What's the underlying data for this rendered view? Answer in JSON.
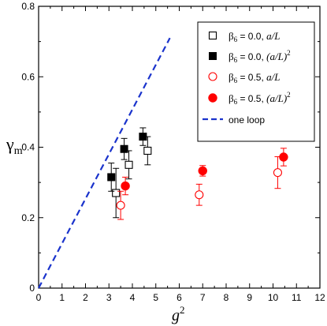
{
  "chart_data": {
    "type": "scatter",
    "xlabel": "g",
    "xlabel_sup": "2",
    "ylabel": "γ",
    "ylabel_sub": "m",
    "xlim": [
      0,
      12
    ],
    "ylim": [
      0,
      0.8
    ],
    "xticks": [
      0,
      1,
      2,
      3,
      4,
      5,
      6,
      7,
      8,
      9,
      10,
      11,
      12
    ],
    "yticks": [
      0,
      0.2,
      0.4,
      0.6,
      0.8
    ],
    "ytick_labels": [
      "0",
      "0.2",
      "0.4",
      "0.6",
      "0.8"
    ],
    "grid": false,
    "legend_position": "top-right",
    "series": [
      {
        "legend_parts": [
          "β",
          "6",
          " = 0.0, ",
          "a/L",
          "",
          ""
        ],
        "marker": "open-square",
        "color": "#000000",
        "points": [
          {
            "x": 3.3,
            "y": 0.27,
            "err": 0.07
          },
          {
            "x": 3.85,
            "y": 0.35,
            "err": 0.04
          },
          {
            "x": 4.65,
            "y": 0.39,
            "err": 0.04
          }
        ]
      },
      {
        "legend_parts": [
          "β",
          "6",
          " = 0.0, ",
          "(a/L)",
          "2",
          ""
        ],
        "marker": "filled-square",
        "color": "#000000",
        "points": [
          {
            "x": 3.1,
            "y": 0.315,
            "err": 0.04
          },
          {
            "x": 3.65,
            "y": 0.395,
            "err": 0.03
          },
          {
            "x": 4.45,
            "y": 0.43,
            "err": 0.025
          }
        ]
      },
      {
        "legend_parts": [
          "β",
          "6",
          " = 0.5, ",
          "a/L",
          "",
          ""
        ],
        "marker": "open-circle",
        "color": "#ff0000",
        "points": [
          {
            "x": 3.5,
            "y": 0.235,
            "err": 0.04
          },
          {
            "x": 6.85,
            "y": 0.265,
            "err": 0.03
          },
          {
            "x": 10.2,
            "y": 0.328,
            "err": 0.045
          }
        ]
      },
      {
        "legend_parts": [
          "β",
          "6",
          " = 0.5, ",
          "(a/L)",
          "2",
          ""
        ],
        "marker": "filled-circle",
        "color": "#ff0000",
        "points": [
          {
            "x": 3.7,
            "y": 0.29,
            "err": 0.025
          },
          {
            "x": 7.0,
            "y": 0.333,
            "err": 0.015
          },
          {
            "x": 10.45,
            "y": 0.372,
            "err": 0.025
          }
        ]
      },
      {
        "legend_parts": [
          "",
          "",
          "one loop",
          "",
          "",
          ""
        ],
        "marker": "dashed-line",
        "color": "#1a33cc",
        "points": [
          {
            "x": 0,
            "y": 0
          },
          {
            "x": 5.6,
            "y": 0.71
          }
        ]
      }
    ]
  }
}
